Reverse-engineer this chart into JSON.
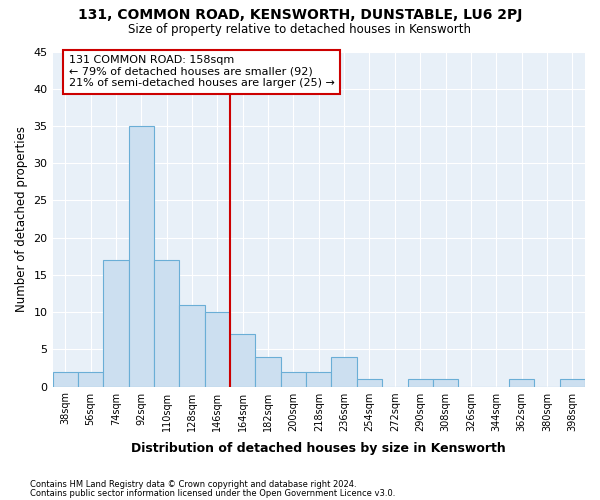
{
  "title1": "131, COMMON ROAD, KENSWORTH, DUNSTABLE, LU6 2PJ",
  "title2": "Size of property relative to detached houses in Kensworth",
  "xlabel": "Distribution of detached houses by size in Kensworth",
  "ylabel": "Number of detached properties",
  "bin_labels": [
    "38sqm",
    "56sqm",
    "74sqm",
    "92sqm",
    "110sqm",
    "128sqm",
    "146sqm",
    "164sqm",
    "182sqm",
    "200sqm",
    "218sqm",
    "236sqm",
    "254sqm",
    "272sqm",
    "290sqm",
    "308sqm",
    "326sqm",
    "344sqm",
    "362sqm",
    "380sqm",
    "398sqm"
  ],
  "bar_heights": [
    2,
    2,
    17,
    35,
    17,
    11,
    10,
    7,
    4,
    2,
    2,
    4,
    1,
    0,
    1,
    1,
    0,
    0,
    1,
    0,
    1
  ],
  "bar_color": "#ccdff0",
  "bar_edge_color": "#6aaed6",
  "vline_color": "#cc0000",
  "vline_bin_index": 7,
  "annotation_text_line1": "131 COMMON ROAD: 158sqm",
  "annotation_text_line2": "← 79% of detached houses are smaller (92)",
  "annotation_text_line3": "21% of semi-detached houses are larger (25) →",
  "annotation_box_color": "#ffffff",
  "annotation_box_edge": "#cc0000",
  "ylim": [
    0,
    45
  ],
  "yticks": [
    0,
    5,
    10,
    15,
    20,
    25,
    30,
    35,
    40,
    45
  ],
  "footer1": "Contains HM Land Registry data © Crown copyright and database right 2024.",
  "footer2": "Contains public sector information licensed under the Open Government Licence v3.0.",
  "plot_bg_color": "#e8f0f8"
}
